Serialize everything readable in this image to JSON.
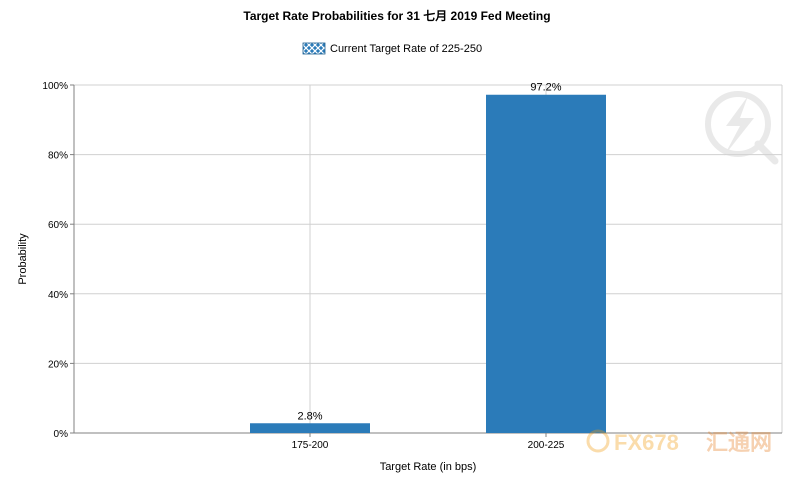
{
  "chart_data": {
    "type": "bar",
    "title": "Target Rate Probabilities for 31 七月 2019 Fed Meeting",
    "legend": [
      "Current Target Rate of 225-250"
    ],
    "categories": [
      "175-200",
      "200-225"
    ],
    "values": [
      2.8,
      97.2
    ],
    "data_labels": [
      "2.8%",
      "97.2%"
    ],
    "xlabel": "Target Rate (in bps)",
    "ylabel": "Probability",
    "ylim": [
      0,
      100
    ],
    "yticks": [
      "0%",
      "20%",
      "40%",
      "60%",
      "80%",
      "100%"
    ],
    "grid": true,
    "legend_position": "top-center",
    "bar_color": "#2b7bb9"
  },
  "watermark": {
    "text": "FX678",
    "subtext": "汇通网",
    "icon": "lightning-q-logo"
  }
}
